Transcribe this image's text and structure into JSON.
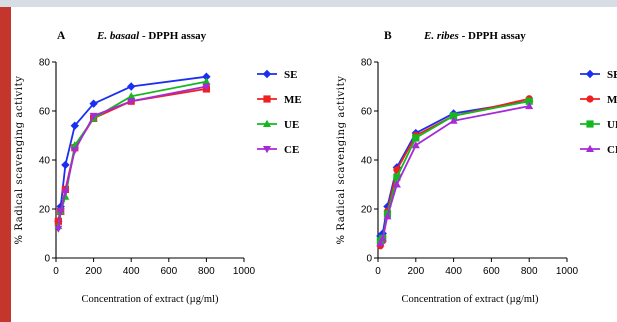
{
  "colors": {
    "top_strip": "#d7dde5",
    "left_bar": "#c4352b",
    "SE": "#1a2ff0",
    "ME": "#f02020",
    "UE": "#14b81e",
    "CE": "#a52bd8"
  },
  "chart_data": [
    {
      "type": "line",
      "panel_label": "A",
      "title_species": "E. basaal",
      "title_suffix": " - DPPH assay",
      "xlabel": "Concentration of extract (µg/ml)",
      "ylabel": "% Radical scavenging activity",
      "xlim": [
        0,
        1000
      ],
      "ylim": [
        0,
        80
      ],
      "xticks": [
        0,
        200,
        400,
        600,
        800,
        1000
      ],
      "yticks": [
        0,
        20,
        40,
        60,
        80
      ],
      "x": [
        12.5,
        25,
        50,
        100,
        200,
        400,
        800
      ],
      "legend_position": "right",
      "series": [
        {
          "name": "SE",
          "marker": "diamond",
          "values": [
            15,
            21,
            38,
            54,
            63,
            70,
            74
          ]
        },
        {
          "name": "ME",
          "marker": "square",
          "values": [
            15,
            19,
            28,
            45,
            57,
            64,
            69
          ]
        },
        {
          "name": "UE",
          "marker": "triangle-up",
          "values": [
            13,
            19,
            25,
            46,
            57,
            66,
            72
          ]
        },
        {
          "name": "CE",
          "marker": "triangle-down",
          "values": [
            12,
            19,
            27,
            44,
            58,
            64,
            70
          ]
        }
      ]
    },
    {
      "type": "line",
      "panel_label": "B",
      "title_species": "E. ribes",
      "title_suffix": " - DPPH assay",
      "xlabel": "Concentration of extract (µg/ml)",
      "ylabel": "% Radical scavenging activity",
      "xlim": [
        0,
        1000
      ],
      "ylim": [
        0,
        80
      ],
      "xticks": [
        0,
        200,
        400,
        600,
        800,
        1000
      ],
      "yticks": [
        0,
        20,
        40,
        60,
        80
      ],
      "x": [
        12.5,
        25,
        50,
        100,
        200,
        400,
        800
      ],
      "legend_position": "right",
      "series": [
        {
          "name": "SE",
          "marker": "diamond",
          "values": [
            9,
            10,
            21,
            37,
            51,
            59,
            64
          ]
        },
        {
          "name": "ME",
          "marker": "circle",
          "values": [
            5,
            7,
            19,
            36,
            50,
            58,
            65
          ]
        },
        {
          "name": "UE",
          "marker": "square",
          "values": [
            7,
            8,
            18,
            33,
            49,
            58,
            64
          ]
        },
        {
          "name": "CE",
          "marker": "triangle-up",
          "values": [
            6,
            8,
            17,
            30,
            46,
            56,
            62
          ]
        }
      ]
    }
  ]
}
